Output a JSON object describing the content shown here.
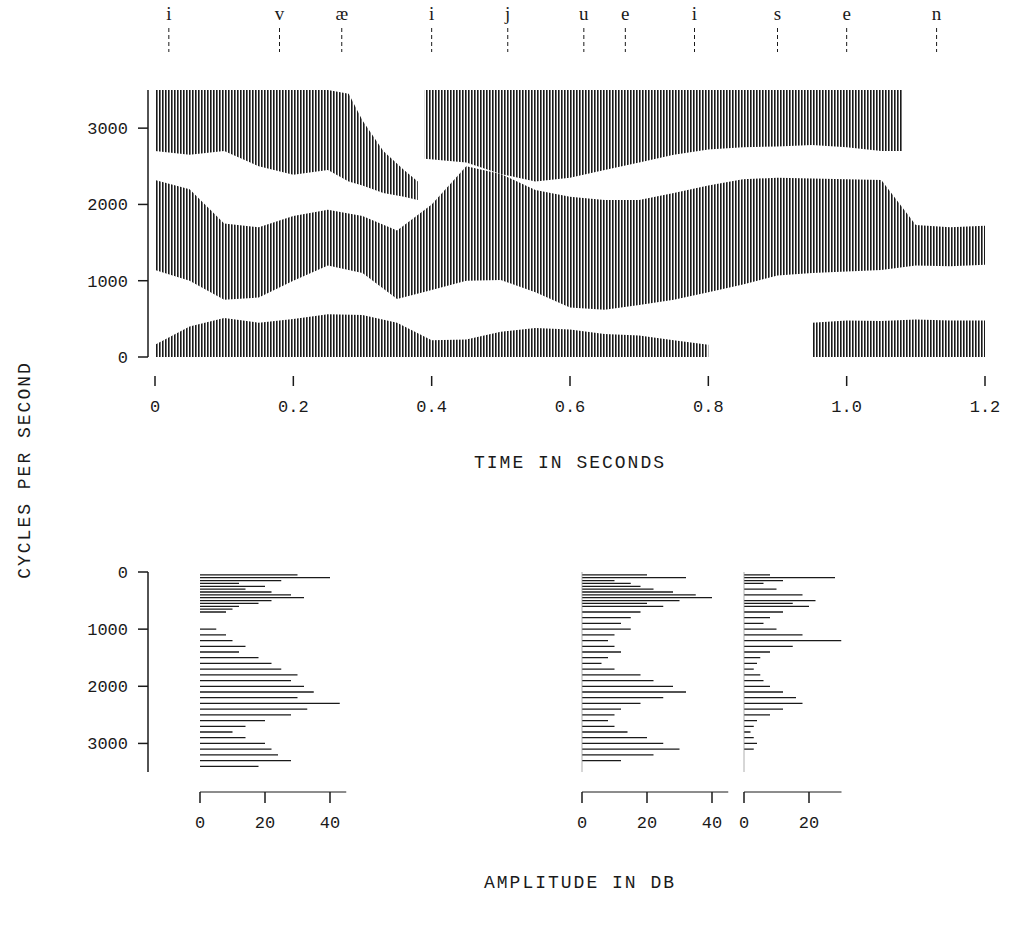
{
  "y_label": "CYCLES PER SECOND",
  "amplitude_label": "AMPLITUDE IN DB",
  "chart_data": [
    {
      "type": "band",
      "x_label": "TIME IN SECONDS",
      "color": "#1a1a1a",
      "xlim": [
        0,
        1.2
      ],
      "xticks": [
        0,
        0.2,
        0.4,
        0.6,
        0.8,
        {
          "value": 1,
          "label": "1.0"
        },
        1.2
      ],
      "ylim": [
        0,
        3500
      ],
      "yticks": [
        0,
        1000,
        2000,
        3000
      ],
      "annotations": [
        {
          "x": 0.02,
          "label": "i"
        },
        {
          "x": 0.18,
          "label": "v"
        },
        {
          "x": 0.27,
          "label": "æ"
        },
        {
          "x": 0.4,
          "label": "i"
        },
        {
          "x": 0.51,
          "label": "j"
        },
        {
          "x": 0.62,
          "label": "u"
        },
        {
          "x": 0.68,
          "label": "e"
        },
        {
          "x": 0.78,
          "label": "i"
        },
        {
          "x": 0.9,
          "label": "s"
        },
        {
          "x": 1.0,
          "label": "e"
        },
        {
          "x": 1.13,
          "label": "n"
        }
      ],
      "series": [
        {
          "color": "#1a1a1a",
          "x": [
            0,
            0.05,
            0.1,
            0.15,
            0.2,
            0.25,
            0.3,
            0.35,
            0.4,
            0.45,
            0.5,
            0.55,
            0.6,
            0.65,
            0.7,
            0.75,
            0.8,
            0.85,
            0.9,
            0.95,
            1.0,
            1.05,
            1.1,
            1.15,
            1.2
          ],
          "upper": [
            160,
            400,
            510,
            450,
            500,
            560,
            550,
            450,
            220,
            230,
            330,
            380,
            360,
            300,
            280,
            220,
            160,
            null,
            null,
            450,
            480,
            470,
            490,
            480,
            480
          ],
          "lower": [
            0,
            0,
            0,
            0,
            0,
            0,
            0,
            0,
            0,
            0,
            0,
            0,
            0,
            0,
            0,
            0,
            0,
            null,
            null,
            0,
            0,
            0,
            0,
            0,
            0
          ]
        },
        {
          "color": "#1a1a1a",
          "x": [
            0,
            0.05,
            0.1,
            0.15,
            0.2,
            0.25,
            0.3,
            0.35,
            0.4,
            0.45,
            0.5,
            0.55,
            0.6,
            0.65,
            0.7,
            0.75,
            0.8,
            0.85,
            0.9,
            0.95,
            1.0,
            1.05,
            1.1,
            1.15,
            1.2
          ],
          "upper": [
            2320,
            2200,
            1750,
            1700,
            1850,
            1930,
            1850,
            1660,
            2000,
            2500,
            2400,
            2190,
            2100,
            2060,
            2060,
            2150,
            2250,
            2330,
            2350,
            2340,
            2330,
            2320,
            1730,
            1700,
            1720
          ],
          "lower": [
            1140,
            1000,
            750,
            780,
            1000,
            1200,
            1100,
            760,
            880,
            1000,
            1010,
            850,
            650,
            620,
            680,
            750,
            850,
            950,
            1070,
            1100,
            1120,
            1140,
            1200,
            1190,
            1210
          ]
        },
        {
          "color": "#1a1a1a",
          "x": [
            0,
            0.05,
            0.1,
            0.15,
            0.2,
            0.25,
            0.28,
            0.3,
            0.33,
            0.36,
            0.38,
            0.385,
            0.39,
            0.45,
            0.5,
            0.55,
            0.6,
            0.65,
            0.7,
            0.75,
            0.8,
            0.85,
            0.9,
            0.95,
            1.0,
            1.05,
            1.08
          ],
          "upper": [
            3500,
            3500,
            3500,
            3500,
            3500,
            3500,
            3450,
            3100,
            2700,
            2450,
            2300,
            null,
            3500,
            3500,
            3500,
            3500,
            3500,
            3500,
            3500,
            3500,
            3500,
            3500,
            3500,
            3500,
            3500,
            3500,
            3500
          ],
          "lower": [
            2700,
            2650,
            2700,
            2500,
            2390,
            2450,
            2300,
            2250,
            2150,
            2100,
            2060,
            null,
            2600,
            2550,
            2400,
            2300,
            2350,
            2450,
            2550,
            2650,
            2720,
            2750,
            2760,
            2780,
            2750,
            2700,
            2700
          ]
        }
      ]
    },
    {
      "type": "bar",
      "orientation": "horizontal",
      "color": "#1a1a1a",
      "xlim": [
        0,
        3500
      ],
      "xticks": [
        0,
        1000,
        2000,
        3000
      ],
      "ylim": [
        0,
        45
      ],
      "yticks": [
        0,
        20,
        40
      ],
      "x": [
        50,
        100,
        150,
        200,
        250,
        300,
        350,
        400,
        450,
        500,
        550,
        600,
        650,
        700,
        1000,
        1100,
        1200,
        1300,
        1400,
        1500,
        1600,
        1700,
        1800,
        1900,
        2000,
        2100,
        2200,
        2300,
        2400,
        2500,
        2600,
        2700,
        2800,
        2900,
        3000,
        3100,
        3200,
        3300,
        3400
      ],
      "values": [
        30,
        40,
        25,
        12,
        20,
        14,
        22,
        28,
        32,
        22,
        18,
        12,
        10,
        8,
        5,
        8,
        10,
        14,
        12,
        18,
        22,
        25,
        30,
        28,
        32,
        35,
        30,
        43,
        33,
        28,
        20,
        14,
        10,
        14,
        20,
        22,
        24,
        28,
        18
      ]
    },
    {
      "type": "bar",
      "orientation": "horizontal",
      "color": "#1a1a1a",
      "tick_labels": "y",
      "xlim": [
        0,
        3500
      ],
      "ylim": [
        0,
        45
      ],
      "yticks": [
        0,
        20,
        40
      ],
      "x": [
        50,
        100,
        150,
        200,
        250,
        300,
        350,
        400,
        450,
        500,
        550,
        600,
        700,
        800,
        900,
        1000,
        1100,
        1200,
        1300,
        1400,
        1500,
        1600,
        1700,
        1800,
        1900,
        2000,
        2100,
        2200,
        2300,
        2400,
        2500,
        2600,
        2700,
        2800,
        2900,
        3000,
        3100,
        3200,
        3300
      ],
      "values": [
        20,
        32,
        10,
        15,
        18,
        22,
        28,
        35,
        40,
        30,
        20,
        25,
        18,
        15,
        12,
        15,
        10,
        8,
        10,
        12,
        8,
        6,
        10,
        18,
        22,
        28,
        32,
        25,
        18,
        12,
        10,
        8,
        10,
        14,
        20,
        25,
        30,
        22,
        12
      ]
    },
    {
      "type": "bar",
      "orientation": "horizontal",
      "color": "#1a1a1a",
      "tick_labels": "y",
      "xlim": [
        0,
        3500
      ],
      "ylim": [
        0,
        30
      ],
      "yticks": [
        0,
        20
      ],
      "x": [
        50,
        100,
        150,
        200,
        300,
        400,
        500,
        550,
        600,
        700,
        800,
        900,
        1000,
        1100,
        1200,
        1300,
        1400,
        1500,
        1600,
        1700,
        1800,
        1900,
        2000,
        2100,
        2200,
        2300,
        2400,
        2500,
        2600,
        2700,
        2800,
        2900,
        3000,
        3100
      ],
      "values": [
        8,
        28,
        12,
        6,
        10,
        18,
        22,
        15,
        20,
        12,
        8,
        6,
        10,
        18,
        30,
        15,
        8,
        5,
        4,
        3,
        5,
        6,
        8,
        12,
        16,
        18,
        12,
        8,
        4,
        3,
        2,
        3,
        4,
        3
      ]
    }
  ]
}
